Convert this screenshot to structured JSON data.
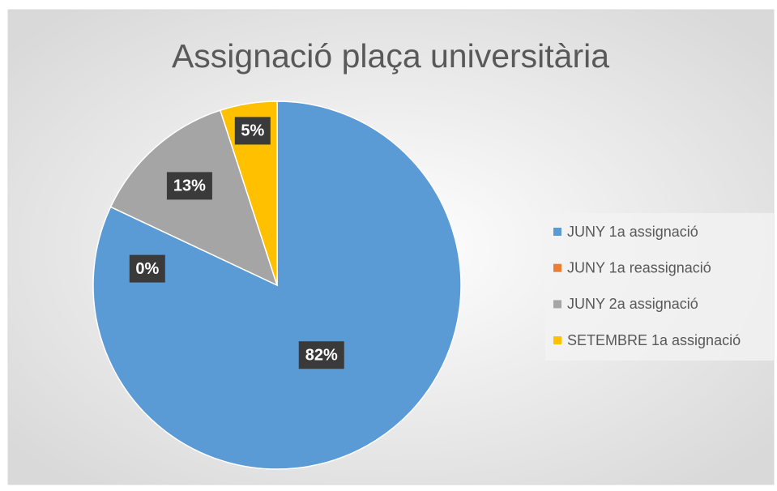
{
  "chart_data": {
    "type": "pie",
    "title": "Assignació plaça universitària",
    "categories": [
      "JUNY 1a assignació",
      "JUNY 1a reassignació",
      "JUNY 2a assignació",
      "SETEMBRE 1a assignació"
    ],
    "values": [
      82,
      0,
      13,
      5
    ],
    "value_labels": [
      "82%",
      "0%",
      "13%",
      "5%"
    ],
    "colors": [
      "#5b9bd5",
      "#ed7d31",
      "#a5a5a5",
      "#ffc000"
    ],
    "legend": "right"
  }
}
